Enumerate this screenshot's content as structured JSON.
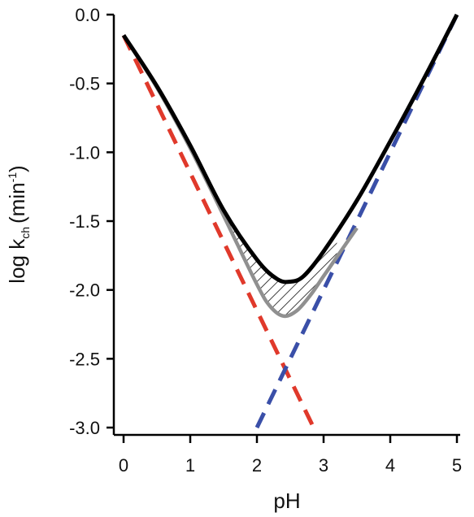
{
  "chart_data": {
    "type": "line",
    "title": "",
    "xlabel": "pH",
    "ylabel": {
      "main": "log k",
      "sub": "ch",
      "unit": "(min",
      "unit_sup": "-1",
      "unit_close": ")"
    },
    "xlim": [
      0,
      5
    ],
    "ylim": [
      -3,
      0
    ],
    "xticks": [
      "0",
      "1",
      "2",
      "3",
      "4",
      "5"
    ],
    "yticks": [
      "0.0",
      "-0.5",
      "-1.0",
      "-1.5",
      "-2.0",
      "-2.5",
      "-3.0"
    ],
    "grid": false,
    "legend": "none",
    "series": [
      {
        "style": "solid",
        "color": "#000000",
        "x": [
          0,
          0.5,
          1.0,
          1.5,
          2.0,
          2.3,
          2.5,
          2.7,
          3.0,
          3.5,
          4.0,
          4.5,
          5.0
        ],
        "y": [
          -0.15,
          -0.52,
          -0.95,
          -1.42,
          -1.78,
          -1.92,
          -1.94,
          -1.9,
          -1.72,
          -1.35,
          -0.92,
          -0.47,
          0.0
        ]
      },
      {
        "style": "solid",
        "color": "#909090",
        "x": [
          0,
          0.5,
          1.0,
          1.5,
          2.0,
          2.2,
          2.4,
          2.6,
          2.8,
          3.0,
          3.2,
          3.5
        ],
        "y": [
          -0.15,
          -0.53,
          -0.97,
          -1.46,
          -1.96,
          -2.12,
          -2.19,
          -2.15,
          -2.04,
          -1.9,
          -1.76,
          -1.55
        ]
      },
      {
        "style": "dashed",
        "color": "#e0392b",
        "x": [
          0,
          2.85
        ],
        "y": [
          -0.15,
          -3.0
        ]
      },
      {
        "style": "dashed",
        "color": "#3a4fa8",
        "x": [
          2.0,
          5.0
        ],
        "y": [
          -3.0,
          0.0
        ]
      }
    ],
    "hatched_region": {
      "between": [
        0,
        1
      ],
      "x_from": 1.6,
      "x_to": 3.2
    }
  }
}
